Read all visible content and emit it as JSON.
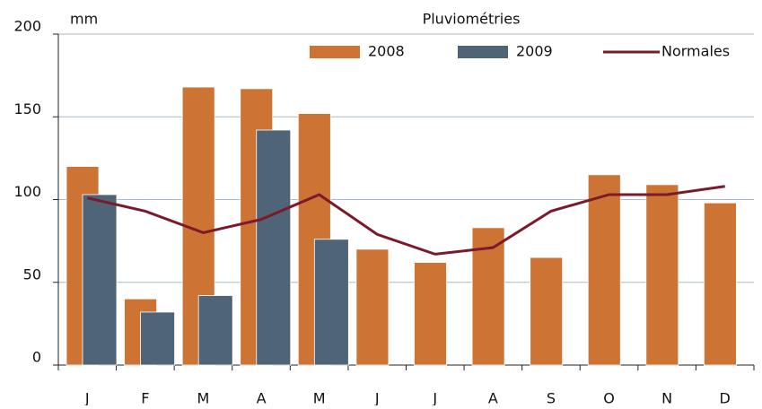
{
  "chart_data": {
    "type": "bar",
    "title": "Pluviométries",
    "y_label": "mm",
    "categories": [
      "J",
      "F",
      "M",
      "A",
      "M",
      "J",
      "J",
      "A",
      "S",
      "O",
      "N",
      "D"
    ],
    "series": [
      {
        "name": "2008",
        "color": "#cd7434",
        "values": [
          120,
          40,
          168,
          167,
          152,
          70,
          62,
          83,
          65,
          115,
          109,
          98
        ]
      },
      {
        "name": "2009",
        "color": "#4f6577",
        "values": [
          103,
          32,
          42,
          142,
          76,
          null,
          null,
          null,
          null,
          null,
          null,
          null
        ]
      },
      {
        "name": "Normales",
        "type": "line",
        "color": "#7a1a2a",
        "values": [
          101,
          93,
          80,
          88,
          103,
          79,
          67,
          71,
          93,
          103,
          103,
          108
        ]
      }
    ],
    "ylim": [
      0,
      200
    ],
    "yticks": [
      0,
      50,
      100,
      150,
      200
    ],
    "grid": true
  }
}
